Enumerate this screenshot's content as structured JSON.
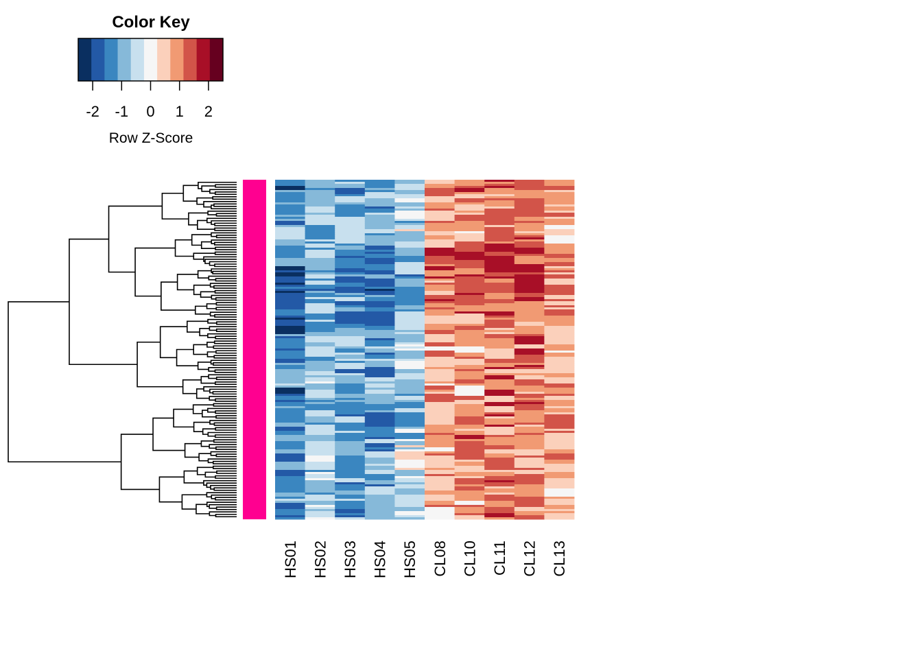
{
  "chart_data": {
    "type": "heatmap",
    "title": "",
    "color_key": {
      "title": "Color Key",
      "label": "Row Z-Score",
      "range": [
        -2.5,
        2.5
      ],
      "ticks": [
        "-2",
        "-1",
        "0",
        "1",
        "2"
      ],
      "colors": [
        "#0a2f60",
        "#2359a6",
        "#3a86c0",
        "#86b9d9",
        "#c8e0ee",
        "#f6f6f6",
        "#fbd0bb",
        "#f19a73",
        "#d25449",
        "#a80f27",
        "#66001f"
      ]
    },
    "columns": [
      "HS01",
      "HS02",
      "HS03",
      "HS04",
      "HS05",
      "CL08",
      "CL10",
      "CL11",
      "CL12",
      "CL13"
    ],
    "groups": {
      "HS": [
        "HS01",
        "HS02",
        "HS03",
        "HS04",
        "HS05"
      ],
      "CL": [
        "CL08",
        "CL10",
        "CL11",
        "CL12",
        "CL13"
      ]
    },
    "row_side_color": "#ff0090",
    "row_dendrogram": true,
    "column_mean_z": [
      -1.5,
      -0.9,
      -1.2,
      -1.3,
      -0.7,
      1.0,
      1.0,
      1.2,
      1.2,
      0.9
    ]
  }
}
